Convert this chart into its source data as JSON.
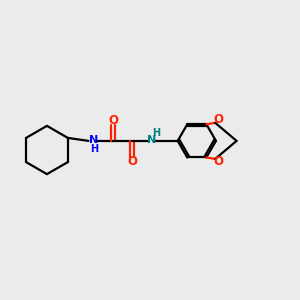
{
  "bg_color": "#ebebeb",
  "bond_color": "#000000",
  "nitrogen_color": "#0000ff",
  "oxygen_color": "#ff2200",
  "nh_color": "#008080",
  "line_width": 1.6,
  "figsize": [
    3.0,
    3.0
  ],
  "dpi": 100,
  "xlim": [
    0,
    10
  ],
  "ylim": [
    2,
    8
  ]
}
